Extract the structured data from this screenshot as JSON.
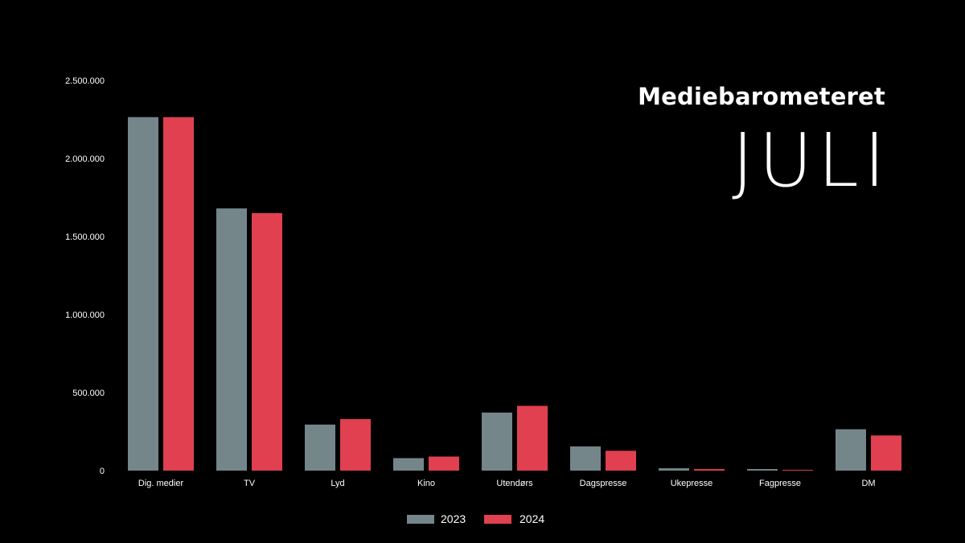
{
  "header": {
    "subtitle": "Mediebarometeret",
    "title": "JULI"
  },
  "colors": {
    "background": "#000000",
    "series_2023": "#75868b",
    "series_2024": "#e04050"
  },
  "chart_data": {
    "type": "bar",
    "categories": [
      "Dig. medier",
      "TV",
      "Lyd",
      "Kino",
      "Utendørs",
      "Dagspresse",
      "Ukepresse",
      "Fagpresse",
      "DM"
    ],
    "series": [
      {
        "name": "2023",
        "values": [
          2265000,
          1680000,
          295000,
          80000,
          372000,
          155000,
          15000,
          10000,
          265000
        ]
      },
      {
        "name": "2024",
        "values": [
          2265000,
          1650000,
          330000,
          90000,
          415000,
          127000,
          10000,
          5000,
          225000
        ]
      }
    ],
    "yticks": [
      "0",
      "500.000",
      "1.000.000",
      "1.500.000",
      "2.000.000",
      "2.500.000"
    ],
    "ylim": [
      0,
      2500000
    ],
    "grid": false,
    "legend_position": "bottom-center"
  }
}
